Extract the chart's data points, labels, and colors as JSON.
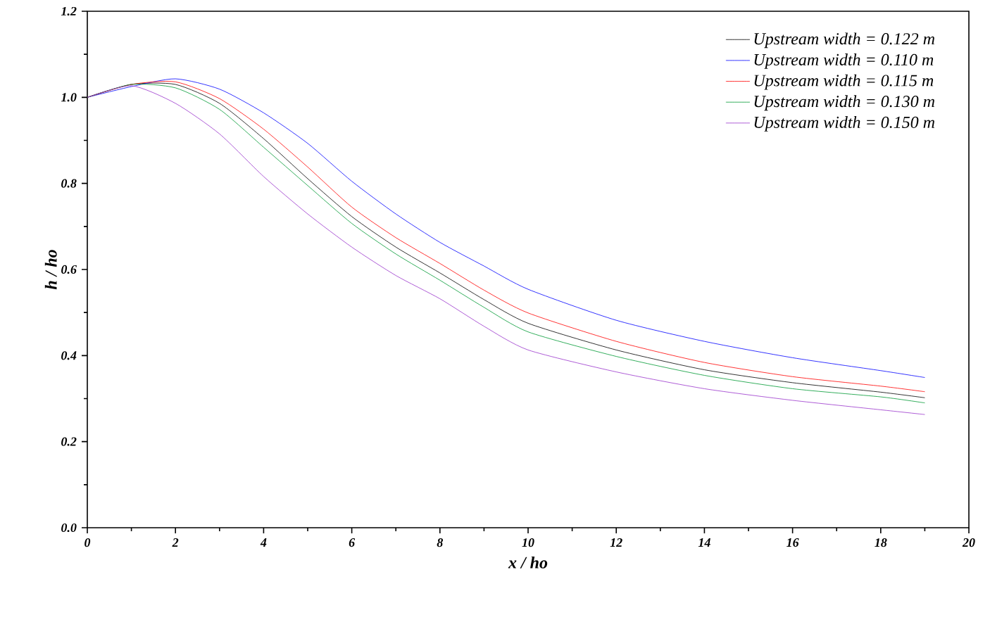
{
  "chart_data": {
    "type": "line",
    "xlabel": "x / ho",
    "ylabel": "h / ho",
    "xlim": [
      0,
      20
    ],
    "ylim": [
      0,
      1.2
    ],
    "xticks": [
      0,
      2,
      4,
      6,
      8,
      10,
      12,
      14,
      16,
      18,
      20
    ],
    "yticks": [
      {
        "value": 0,
        "label": "0.0"
      },
      {
        "value": 0.2,
        "label": "0.2"
      },
      {
        "value": 0.4,
        "label": "0.4"
      },
      {
        "value": 0.6,
        "label": "0.6"
      },
      {
        "value": 0.8,
        "label": "0.8"
      },
      {
        "value": 1.0,
        "label": "1.0"
      },
      {
        "value": 1.2,
        "label": "1.2"
      }
    ],
    "x": [
      0,
      1,
      2,
      3,
      4,
      5,
      6,
      7,
      8,
      9,
      10,
      12,
      14,
      16,
      18,
      19
    ],
    "legend": "top right",
    "grid": false,
    "marker": "none",
    "line_style": "solid",
    "series": [
      {
        "name": "Upstream width = 0.122 m",
        "color": "#000000",
        "values": [
          1.0,
          1.03,
          1.03,
          0.986,
          0.904,
          0.811,
          0.723,
          0.652,
          0.592,
          0.53,
          0.475,
          0.413,
          0.367,
          0.337,
          0.315,
          0.302
        ]
      },
      {
        "name": "Upstream width = 0.110 m",
        "color": "#0000ff",
        "values": [
          1.0,
          1.025,
          1.043,
          1.019,
          0.964,
          0.893,
          0.805,
          0.729,
          0.663,
          0.608,
          0.554,
          0.482,
          0.433,
          0.395,
          0.365,
          0.349
        ]
      },
      {
        "name": "Upstream width = 0.115 m",
        "color": "#ff0000",
        "values": [
          1.0,
          1.03,
          1.036,
          0.997,
          0.926,
          0.838,
          0.745,
          0.674,
          0.614,
          0.552,
          0.499,
          0.433,
          0.384,
          0.351,
          0.329,
          0.316
        ]
      },
      {
        "name": "Upstream width = 0.130 m",
        "color": "#009933",
        "values": [
          1.0,
          1.03,
          1.022,
          0.972,
          0.884,
          0.795,
          0.707,
          0.636,
          0.575,
          0.512,
          0.455,
          0.398,
          0.354,
          0.323,
          0.304,
          0.29
        ]
      },
      {
        "name": "Upstream width = 0.150 m",
        "color": "#9933cc",
        "values": [
          1.0,
          1.027,
          0.986,
          0.915,
          0.816,
          0.729,
          0.652,
          0.586,
          0.532,
          0.468,
          0.413,
          0.362,
          0.323,
          0.296,
          0.274,
          0.263
        ]
      }
    ]
  }
}
